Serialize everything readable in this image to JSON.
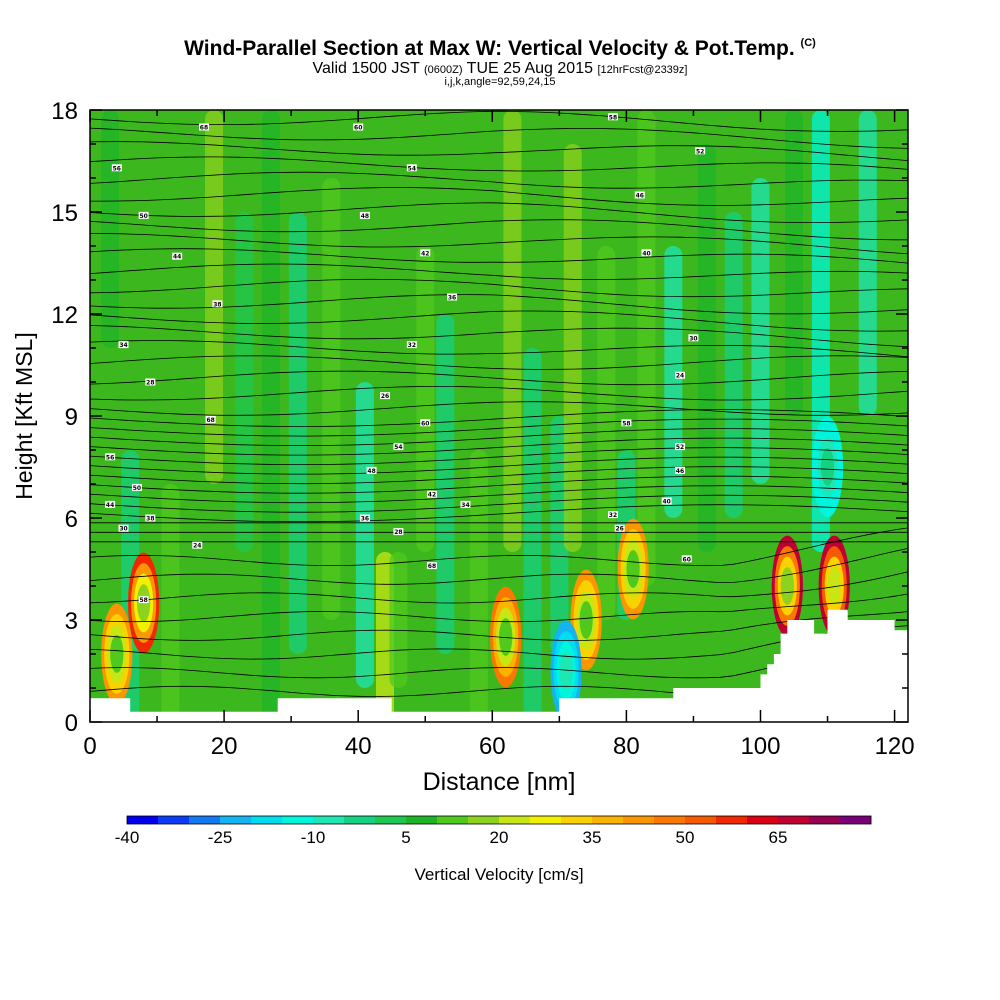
{
  "header": {
    "title": "Wind-Parallel Section at Max W: Vertical Velocity & Pot.Temp.",
    "title_unit": "(C)",
    "valid_prefix": "Valid 1500 JST",
    "valid_utc": "(0600Z)",
    "valid_date": "TUE 25 Aug 2015",
    "forecast": "[12hrFcst@2339z]",
    "indices": "i,j,k,angle=92,59,24,15"
  },
  "chart_data": {
    "type": "heatmap",
    "xlabel": "Distance [nm]",
    "ylabel": "Height [Kft MSL]",
    "xlim": [
      0,
      122
    ],
    "ylim": [
      0,
      18
    ],
    "x_ticks": [
      0,
      20,
      40,
      60,
      80,
      100,
      120
    ],
    "y_ticks": [
      0,
      3,
      6,
      9,
      12,
      15,
      18
    ],
    "colorbar": {
      "label": "Vertical Velocity [cm/s]",
      "tick_labels": [
        "-40",
        "-25",
        "-10",
        "5",
        "20",
        "35",
        "50",
        "65"
      ],
      "min": -40,
      "step": 5,
      "colors": [
        "#0000ee",
        "#0a3cf5",
        "#1478f0",
        "#14b4f0",
        "#00dcf0",
        "#00f5dc",
        "#1ee6b4",
        "#14d282",
        "#1ec850",
        "#1eb428",
        "#50c81e",
        "#8cd21e",
        "#c8e614",
        "#f0f000",
        "#fad200",
        "#fab400",
        "#fa9600",
        "#fa7800",
        "#f55a00",
        "#f02800",
        "#dc0014",
        "#be0032",
        "#960050",
        "#780078"
      ]
    },
    "theta_label_values": [
      "68",
      "60",
      "58",
      "56",
      "54",
      "52",
      "50",
      "48",
      "46",
      "44",
      "42",
      "40",
      "38",
      "36",
      "34",
      "32",
      "30",
      "28",
      "26",
      "24"
    ],
    "series": [
      {
        "name": "Vertical Velocity",
        "type": "filled-contour",
        "notable_maxima": [
          {
            "x": 8,
            "y": 3.5,
            "value": 55
          },
          {
            "x": 4,
            "y": 2.0,
            "value": 40
          },
          {
            "x": 62,
            "y": 2.5,
            "value": 48
          },
          {
            "x": 74,
            "y": 3.0,
            "value": 40
          },
          {
            "x": 81,
            "y": 4.5,
            "value": 40
          },
          {
            "x": 104,
            "y": 4.0,
            "value": 65
          },
          {
            "x": 111,
            "y": 4.0,
            "value": 68
          }
        ],
        "notable_minima": [
          {
            "x": 71,
            "y": 1.5,
            "value": -25
          },
          {
            "x": 110,
            "y": 7.5,
            "value": -15
          }
        ]
      },
      {
        "name": "Potential Temperature",
        "type": "contour",
        "levels_min": 24,
        "levels_max": 68
      }
    ],
    "terrain_profile": [
      [
        0,
        0.7
      ],
      [
        6,
        0.7
      ],
      [
        6,
        0.3
      ],
      [
        28,
        0.3
      ],
      [
        28,
        0.7
      ],
      [
        45,
        0.7
      ],
      [
        45,
        0.3
      ],
      [
        70,
        0.3
      ],
      [
        70,
        0.7
      ],
      [
        87,
        0.7
      ],
      [
        87,
        1.0
      ],
      [
        100,
        1.0
      ],
      [
        100,
        1.4
      ],
      [
        101,
        1.4
      ],
      [
        101,
        1.7
      ],
      [
        102,
        1.7
      ],
      [
        102,
        2.0
      ],
      [
        103,
        2.0
      ],
      [
        103,
        2.6
      ],
      [
        104,
        2.6
      ],
      [
        104,
        3.0
      ],
      [
        108,
        3.0
      ],
      [
        108,
        2.6
      ],
      [
        110,
        2.6
      ],
      [
        110,
        3.3
      ],
      [
        113,
        3.3
      ],
      [
        113,
        3.0
      ],
      [
        120,
        3.0
      ],
      [
        120,
        2.7
      ],
      [
        122,
        2.7
      ]
    ]
  }
}
